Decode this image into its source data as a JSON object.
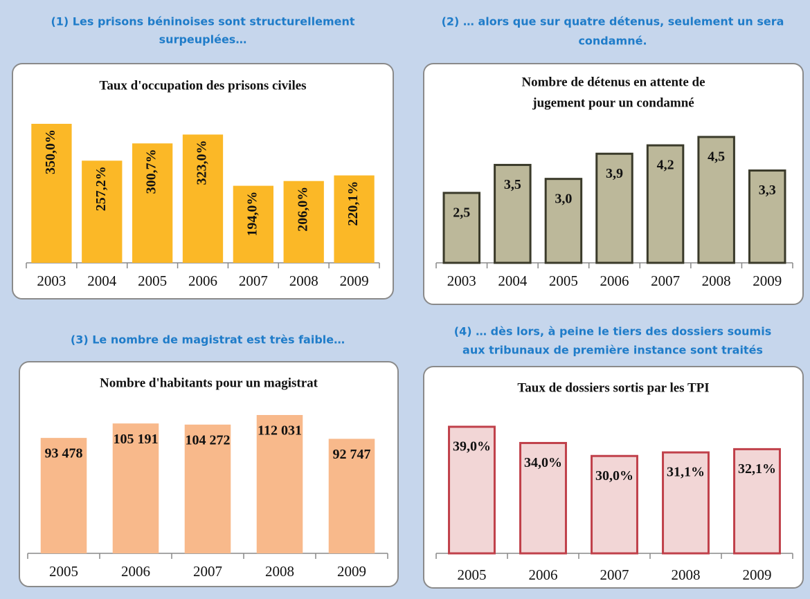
{
  "chart_data": [
    {
      "type": "bar",
      "heading": [
        "(1) Les prisons béninoises sont structurellement",
        "surpeuplées…"
      ],
      "title": [
        "Taux d'occupation des prisons civiles"
      ],
      "categories": [
        "2003",
        "2004",
        "2005",
        "2006",
        "2007",
        "2008",
        "2009"
      ],
      "values": [
        350.0,
        257.2,
        300.7,
        323.0,
        194.0,
        206.0,
        220.1
      ],
      "value_labels": [
        "350,0%",
        "257,2%",
        "300,7%",
        "323,0%",
        "194,0%",
        "206,0%",
        "220,1%"
      ],
      "color": "#fbb827"
    },
    {
      "type": "bar",
      "heading": [
        "(2) … alors que sur quatre détenus, seulement un sera",
        "condamné."
      ],
      "title": [
        "Nombre de détenus en attente de",
        "jugement pour un condamné"
      ],
      "categories": [
        "2003",
        "2004",
        "2005",
        "2006",
        "2007",
        "2008",
        "2009"
      ],
      "values": [
        2.5,
        3.5,
        3.0,
        3.9,
        4.2,
        4.5,
        3.3
      ],
      "value_labels": [
        "2,5",
        "3,5",
        "3,0",
        "3,9",
        "4,2",
        "4,5",
        "3,3"
      ],
      "color": "#bcb89a",
      "edge_color": "#3a3a2a"
    },
    {
      "type": "bar",
      "heading": [
        "(3) Le nombre de magistrat est très faible…"
      ],
      "title": [
        "Nombre d'habitants pour un magistrat"
      ],
      "categories": [
        "2005",
        "2006",
        "2007",
        "2008",
        "2009"
      ],
      "values": [
        93478,
        105191,
        104272,
        112031,
        92747
      ],
      "value_labels": [
        "93 478",
        "105 191",
        "104 272",
        "112 031",
        "92 747"
      ],
      "color": "#f8b98b"
    },
    {
      "type": "bar",
      "heading": [
        "(4) … dès lors, à peine le tiers des dossiers soumis",
        "aux tribunaux de première instance sont traités"
      ],
      "title": [
        "Taux de dossiers sortis par les TPI"
      ],
      "categories": [
        "2005",
        "2006",
        "2007",
        "2008",
        "2009"
      ],
      "values": [
        39.0,
        34.0,
        30.0,
        31.1,
        32.1
      ],
      "value_labels": [
        "39,0%",
        "34,0%",
        "30,0%",
        "31,1%",
        "32,1%"
      ],
      "color": "#f2d6d6",
      "edge_color": "#c0404a"
    }
  ]
}
